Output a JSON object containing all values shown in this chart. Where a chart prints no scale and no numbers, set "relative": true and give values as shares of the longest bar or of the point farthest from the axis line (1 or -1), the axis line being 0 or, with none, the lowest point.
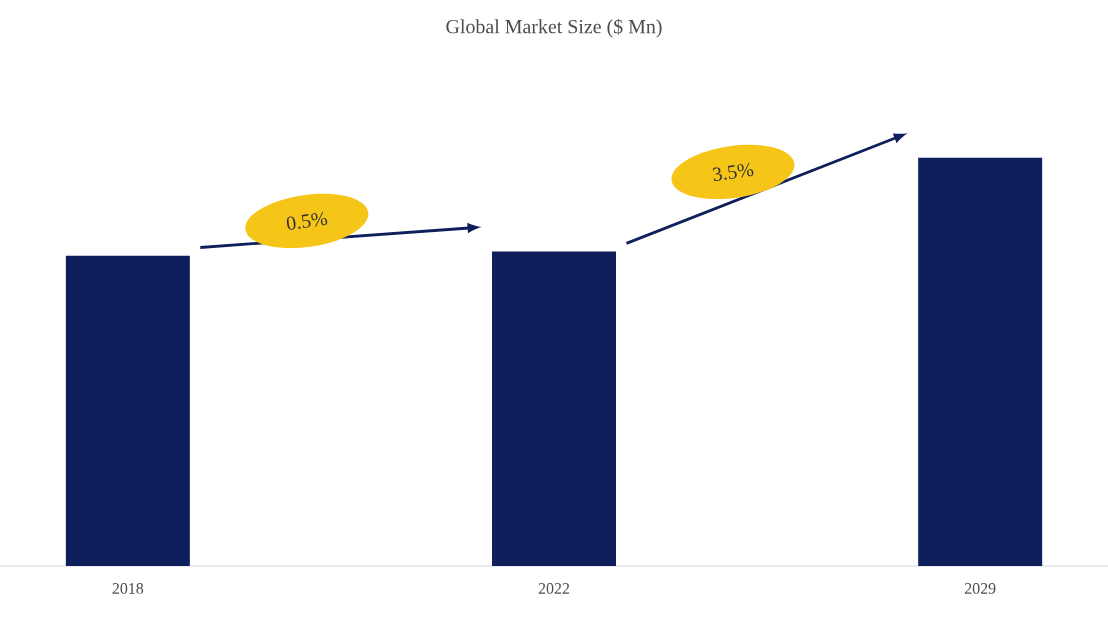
{
  "chart_data": {
    "type": "bar",
    "title": "Global Market Size ($ Mn)",
    "categories": [
      "2018",
      "2022",
      "2029"
    ],
    "values": [
      0.76,
      0.77,
      1
    ],
    "color": "#0f1f5c",
    "relative": true,
    "annotations": [
      "0.5%",
      "3.5%"
    ]
  }
}
